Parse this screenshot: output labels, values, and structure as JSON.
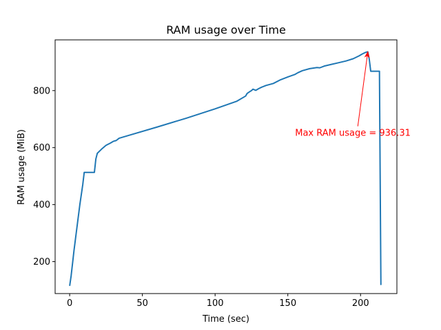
{
  "chart_data": {
    "type": "line",
    "title": "RAM usage over Time",
    "xlabel": "Time (sec)",
    "ylabel": "RAM usage (MiB)",
    "xlim": [
      -10,
      225
    ],
    "ylim": [
      88,
      978
    ],
    "xticks": [
      0,
      50,
      100,
      150,
      200
    ],
    "yticks": [
      200,
      400,
      600,
      800
    ],
    "grid": false,
    "line_color": "#1f77b4",
    "series": [
      {
        "x": [
          0,
          1,
          3,
          5,
          7,
          9,
          10,
          12,
          17,
          18,
          19,
          20,
          22,
          25,
          28,
          30,
          32,
          34,
          40,
          60,
          80,
          100,
          115,
          121,
          122,
          124,
          125,
          126,
          128,
          130,
          132,
          135,
          140,
          145,
          150,
          155,
          157,
          160,
          165,
          170,
          172,
          175,
          180,
          185,
          190,
          195,
          199,
          201,
          203,
          204,
          205,
          206,
          207,
          208,
          212,
          213,
          214
        ],
        "y": [
          115,
          150,
          240,
          320,
          400,
          470,
          513,
          513,
          513,
          560,
          580,
          585,
          595,
          608,
          616,
          622,
          625,
          633,
          642,
          672,
          703,
          736,
          763,
          781,
          790,
          797,
          800,
          805,
          801,
          807,
          812,
          818,
          825,
          838,
          848,
          857,
          863,
          870,
          877,
          881,
          880,
          886,
          892,
          898,
          904,
          912,
          922,
          928,
          933,
          935,
          936,
          910,
          868,
          868,
          868,
          868,
          118
        ]
      }
    ],
    "annotations": [
      {
        "text": "Max RAM usage = 936.31",
        "xy": [
          205,
          936.31
        ],
        "xytext": [
          155,
          641
        ],
        "color": "#ff0000"
      }
    ]
  }
}
